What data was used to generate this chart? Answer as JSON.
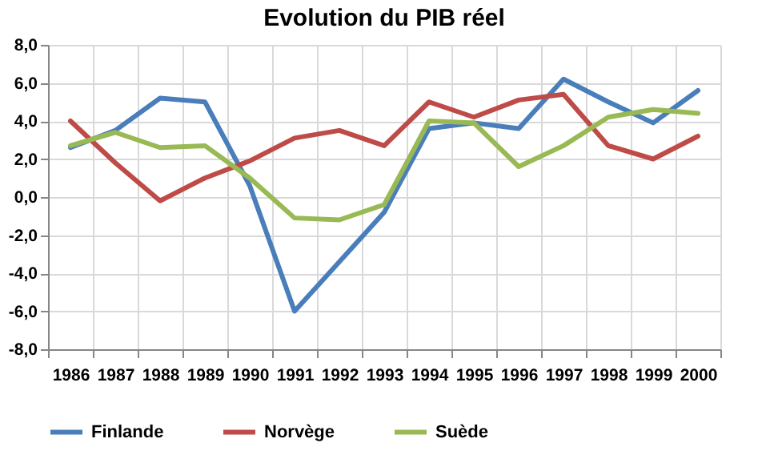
{
  "chart_data": {
    "type": "line",
    "title": "Evolution du PIB réel",
    "categories": [
      "1986",
      "1987",
      "1988",
      "1989",
      "1990",
      "1991",
      "1992",
      "1993",
      "1994",
      "1995",
      "1996",
      "1997",
      "1998",
      "1999",
      "2000"
    ],
    "series": [
      {
        "name": "Finlande",
        "color": "#4a7ebb",
        "values": [
          2.6,
          3.5,
          5.2,
          5.0,
          0.6,
          -6.0,
          -3.4,
          -0.8,
          3.6,
          3.9,
          3.6,
          6.2,
          5.0,
          3.9,
          5.6
        ]
      },
      {
        "name": "Norvège",
        "color": "#be4b48",
        "values": [
          4.0,
          1.8,
          -0.2,
          1.0,
          1.9,
          3.1,
          3.5,
          2.7,
          5.0,
          4.2,
          5.1,
          5.4,
          2.7,
          2.0,
          3.2
        ]
      },
      {
        "name": "Suède",
        "color": "#98b954",
        "values": [
          2.7,
          3.4,
          2.6,
          2.7,
          1.0,
          -1.1,
          -1.2,
          -0.4,
          4.0,
          3.9,
          1.6,
          2.7,
          4.2,
          4.6,
          4.4
        ]
      }
    ],
    "ylim": [
      -8,
      8
    ],
    "yticks": [
      {
        "value": -8,
        "label": "-8,0"
      },
      {
        "value": -6,
        "label": "-6,0"
      },
      {
        "value": -4,
        "label": "-4,0"
      },
      {
        "value": -2,
        "label": "-2,0"
      },
      {
        "value": 0,
        "label": "0,0"
      },
      {
        "value": 2,
        "label": "2,0"
      },
      {
        "value": 4,
        "label": "4,0"
      },
      {
        "value": 6,
        "label": "6,0"
      },
      {
        "value": 8,
        "label": "8,0"
      }
    ],
    "grid": true,
    "legend": "bottom",
    "marker": "none",
    "line_style": "solid"
  }
}
